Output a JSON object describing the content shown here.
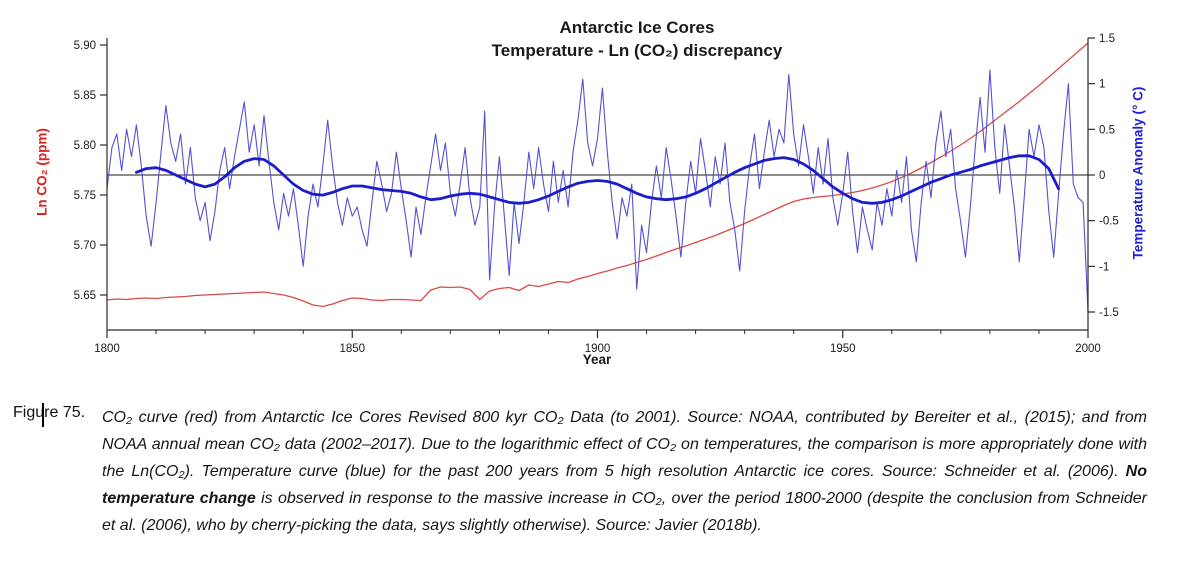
{
  "figure": {
    "title_line1": "Antarctic Ice Cores",
    "title_line2": "Temperature - Ln (CO₂) discrepancy",
    "x_axis_label": "Year",
    "y_left_axis_label": "Ln CO₂ (ppm)",
    "y_right_axis_label": "Temperature Anomaly (° C)",
    "colors": {
      "y_left_label": "#e0221d",
      "y_right_label": "#1f1fd8",
      "axis": "#2b2b2b",
      "zero_line": "#1a1a1a"
    }
  },
  "chart_data": {
    "type": "line",
    "title": "Antarctic Ice Cores — Temperature - Ln (CO₂) discrepancy",
    "xlabel": "Year",
    "xlim": [
      1800,
      2000
    ],
    "x_major_ticks": [
      1800,
      1850,
      1900,
      1950,
      2000
    ],
    "x_minor_step": 10,
    "grid": false,
    "legend": "none",
    "zero_line_right_axis": 0,
    "y_left": {
      "label": "Ln CO₂ (ppm)",
      "ticks": [
        "5.90",
        "5.85",
        "5.80",
        "5.75",
        "5.70",
        "5.65"
      ],
      "tick_values": [
        5.9,
        5.85,
        5.8,
        5.75,
        5.7,
        5.65
      ],
      "lim": [
        5.615,
        5.907
      ]
    },
    "y_right": {
      "label": "Temperature Anomaly (° C)",
      "ticks": [
        "1.5",
        "1",
        "0.5",
        "0",
        "-0.5",
        "-1",
        "-1.5"
      ],
      "tick_values": [
        1.5,
        1,
        0.5,
        0,
        -0.5,
        -1,
        -1.5
      ],
      "lim": [
        -1.7,
        1.5
      ]
    },
    "series": [
      {
        "name": "Ln CO2 (Antarctic ice cores + NOAA annual mean)",
        "axis": "left",
        "color": "#d94b47",
        "width": 1.3,
        "x_start": 1800,
        "x_step": 2,
        "values": [
          5.645,
          5.646,
          5.6455,
          5.6465,
          5.647,
          5.6465,
          5.6475,
          5.648,
          5.6485,
          5.6495,
          5.65,
          5.6505,
          5.651,
          5.6515,
          5.652,
          5.6525,
          5.653,
          5.6515,
          5.65,
          5.6475,
          5.644,
          5.64,
          5.6385,
          5.641,
          5.6445,
          5.647,
          5.6465,
          5.645,
          5.6445,
          5.6455,
          5.6455,
          5.645,
          5.6445,
          5.655,
          5.658,
          5.6575,
          5.658,
          5.6555,
          5.6455,
          5.654,
          5.6565,
          5.6575,
          5.6545,
          5.66,
          5.6585,
          5.661,
          5.6635,
          5.6625,
          5.666,
          5.6685,
          5.6715,
          5.674,
          5.677,
          5.6795,
          5.6825,
          5.6855,
          5.689,
          5.6925,
          5.696,
          5.699,
          5.7025,
          5.706,
          5.7095,
          5.7135,
          5.7175,
          5.7215,
          5.726,
          5.7305,
          5.735,
          5.7395,
          5.7435,
          5.746,
          5.7475,
          5.7485,
          5.7495,
          5.751,
          5.7525,
          5.7545,
          5.757,
          5.76,
          5.7635,
          5.7675,
          5.772,
          5.777,
          5.7825,
          5.788,
          5.794,
          5.8,
          5.8065,
          5.8135,
          5.821,
          5.8285,
          5.836,
          5.8435,
          5.8515,
          5.8595,
          5.868,
          5.8765,
          5.885,
          5.8935,
          5.902
        ]
      },
      {
        "name": "Temperature anomaly, annual (Schneider et al. 2006)",
        "axis": "right",
        "color": "#5252d4",
        "width": 1.1,
        "x_start": 1800,
        "x_step": 1,
        "values": [
          -0.15,
          0.3,
          0.45,
          0.05,
          0.5,
          0.2,
          0.55,
          0.1,
          -0.45,
          -0.78,
          -0.3,
          0.25,
          0.76,
          0.35,
          0.15,
          0.45,
          -0.1,
          0.3,
          -0.25,
          -0.5,
          -0.3,
          -0.72,
          -0.4,
          0.05,
          0.3,
          -0.15,
          0.2,
          0.5,
          0.8,
          0.25,
          0.55,
          0.1,
          0.65,
          0.15,
          -0.3,
          -0.6,
          -0.2,
          -0.45,
          -0.15,
          -0.55,
          -1.0,
          -0.45,
          -0.1,
          -0.35,
          0.1,
          0.6,
          0.1,
          -0.3,
          -0.55,
          -0.25,
          -0.45,
          -0.35,
          -0.6,
          -0.78,
          -0.3,
          0.15,
          -0.1,
          -0.4,
          -0.2,
          0.25,
          -0.15,
          -0.5,
          -0.9,
          -0.35,
          -0.65,
          -0.25,
          0.1,
          0.45,
          0.05,
          0.35,
          -0.2,
          -0.45,
          -0.1,
          0.3,
          -0.25,
          -0.55,
          -0.35,
          0.7,
          -1.15,
          -0.35,
          0.2,
          -0.45,
          -1.1,
          -0.3,
          -0.75,
          -0.3,
          0.25,
          -0.15,
          0.3,
          -0.1,
          -0.4,
          0.15,
          -0.3,
          0.05,
          -0.35,
          0.25,
          0.6,
          1.05,
          0.35,
          0.1,
          0.4,
          0.95,
          0.25,
          -0.3,
          -0.7,
          -0.25,
          -0.45,
          -0.1,
          -1.25,
          -0.55,
          -0.85,
          -0.3,
          0.1,
          -0.25,
          0.3,
          -0.05,
          -0.45,
          -0.9,
          -0.3,
          0.15,
          -0.2,
          0.4,
          0.05,
          -0.35,
          0.2,
          -0.1,
          0.35,
          -0.3,
          -0.6,
          -1.05,
          -0.4,
          0.1,
          0.45,
          -0.15,
          0.25,
          0.6,
          0.2,
          0.5,
          0.35,
          1.1,
          0.45,
          0.1,
          0.55,
          0.2,
          -0.2,
          0.3,
          -0.1,
          0.4,
          -0.25,
          -0.55,
          -0.2,
          0.25,
          -0.4,
          -0.85,
          -0.35,
          -0.6,
          -0.82,
          -0.3,
          -0.55,
          -0.15,
          -0.45,
          0.05,
          -0.3,
          0.2,
          -0.6,
          -0.95,
          -0.3,
          0.15,
          -0.25,
          0.35,
          0.7,
          0.2,
          0.5,
          -0.15,
          -0.5,
          -0.9,
          -0.35,
          0.3,
          0.85,
          0.25,
          1.15,
          0.3,
          -0.2,
          0.55,
          0.1,
          -0.35,
          -0.95,
          -0.25,
          0.5,
          0.2,
          0.55,
          0.3,
          -0.4,
          -0.9,
          -0.2,
          0.45,
          1.0,
          -0.1,
          -0.25,
          -0.3,
          -1.5
        ]
      },
      {
        "name": "Temperature anomaly, smoothed",
        "axis": "right",
        "color": "#1c1ccc",
        "width": 2.8,
        "x_start": 1806,
        "x_step": 2,
        "values": [
          0.03,
          0.07,
          0.08,
          0.05,
          0.0,
          -0.05,
          -0.1,
          -0.13,
          -0.1,
          -0.02,
          0.08,
          0.15,
          0.18,
          0.17,
          0.1,
          0.0,
          -0.1,
          -0.17,
          -0.21,
          -0.22,
          -0.19,
          -0.15,
          -0.12,
          -0.12,
          -0.14,
          -0.16,
          -0.17,
          -0.18,
          -0.2,
          -0.24,
          -0.27,
          -0.26,
          -0.23,
          -0.21,
          -0.2,
          -0.21,
          -0.24,
          -0.27,
          -0.3,
          -0.31,
          -0.3,
          -0.27,
          -0.23,
          -0.18,
          -0.13,
          -0.09,
          -0.07,
          -0.06,
          -0.07,
          -0.1,
          -0.15,
          -0.2,
          -0.24,
          -0.26,
          -0.27,
          -0.26,
          -0.24,
          -0.2,
          -0.15,
          -0.09,
          -0.03,
          0.03,
          0.08,
          0.12,
          0.16,
          0.18,
          0.19,
          0.17,
          0.12,
          0.05,
          -0.04,
          -0.13,
          -0.2,
          -0.26,
          -0.3,
          -0.31,
          -0.3,
          -0.27,
          -0.23,
          -0.18,
          -0.13,
          -0.08,
          -0.04,
          0.0,
          0.03,
          0.06,
          0.1,
          0.13,
          0.16,
          0.19,
          0.21,
          0.21,
          0.17,
          0.07,
          -0.15
        ]
      }
    ]
  },
  "caption": {
    "label": "Figure 75.",
    "segments": [
      {
        "bold": false,
        "text": "CO₂ curve (red) from Antarctic Ice Cores Revised 800 kyr CO₂ Data (to 2001). Source: NOAA, contributed by Bereiter et al., (2015); and from NOAA annual mean CO₂ data (2002–2017). Due to the logarithmic effect of CO₂ on temperatures, the comparison is more appropriately done with the Ln(CO₂). Temperature curve (blue) for the past 200 years from 5 high resolution Antarctic ice cores. Source: Schneider et al. (2006). "
      },
      {
        "bold": true,
        "text": "No temperature change"
      },
      {
        "bold": false,
        "text": " is observed in response to the massive increase in CO₂, over the period 1800-2000 (despite the conclusion from Schneider et al. (2006), who by cherry-picking the data, says slightly otherwise). Source: Javier (2018b)."
      }
    ]
  }
}
